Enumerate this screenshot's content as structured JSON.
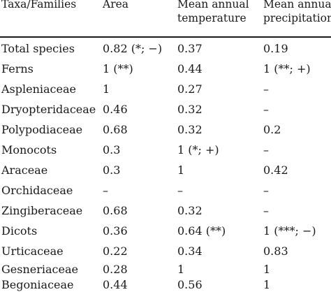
{
  "table": {
    "headers": [
      [
        "Taxa/Families"
      ],
      [
        "Area"
      ],
      [
        "Mean annual",
        "temperature"
      ],
      [
        "Mean annual",
        "precipitation"
      ]
    ],
    "rows": [
      [
        "Total species",
        "0.82 (*; −)",
        "0.37",
        "0.19"
      ],
      [
        "Ferns",
        "1 (**)",
        "0.44",
        "1 (**; +)"
      ],
      [
        "Aspleniaceae",
        "1",
        "0.27",
        "–"
      ],
      [
        "Dryopteridaceae",
        "0.46",
        "0.32",
        "–"
      ],
      [
        "Polypodiaceae",
        "0.68",
        "0.32",
        "0.2"
      ],
      [
        "Monocots",
        "0.3",
        "1 (*; +)",
        "–"
      ],
      [
        "Araceae",
        "0.3",
        "1",
        "0.42"
      ],
      [
        "Orchidaceae",
        "–",
        "–",
        "–"
      ],
      [
        "Zingiberaceae",
        "0.68",
        "0.32",
        "–"
      ],
      [
        "Dicots",
        "0.36",
        "0.64 (**)",
        "1 (***; −)"
      ],
      [
        "Urticaceae",
        "0.22",
        "0.34",
        "0.83"
      ],
      [
        "Gesneriaceae",
        "0.28",
        "1",
        "1"
      ],
      [
        "Begoniaceae",
        "0.44",
        "0.56",
        "1"
      ]
    ]
  }
}
